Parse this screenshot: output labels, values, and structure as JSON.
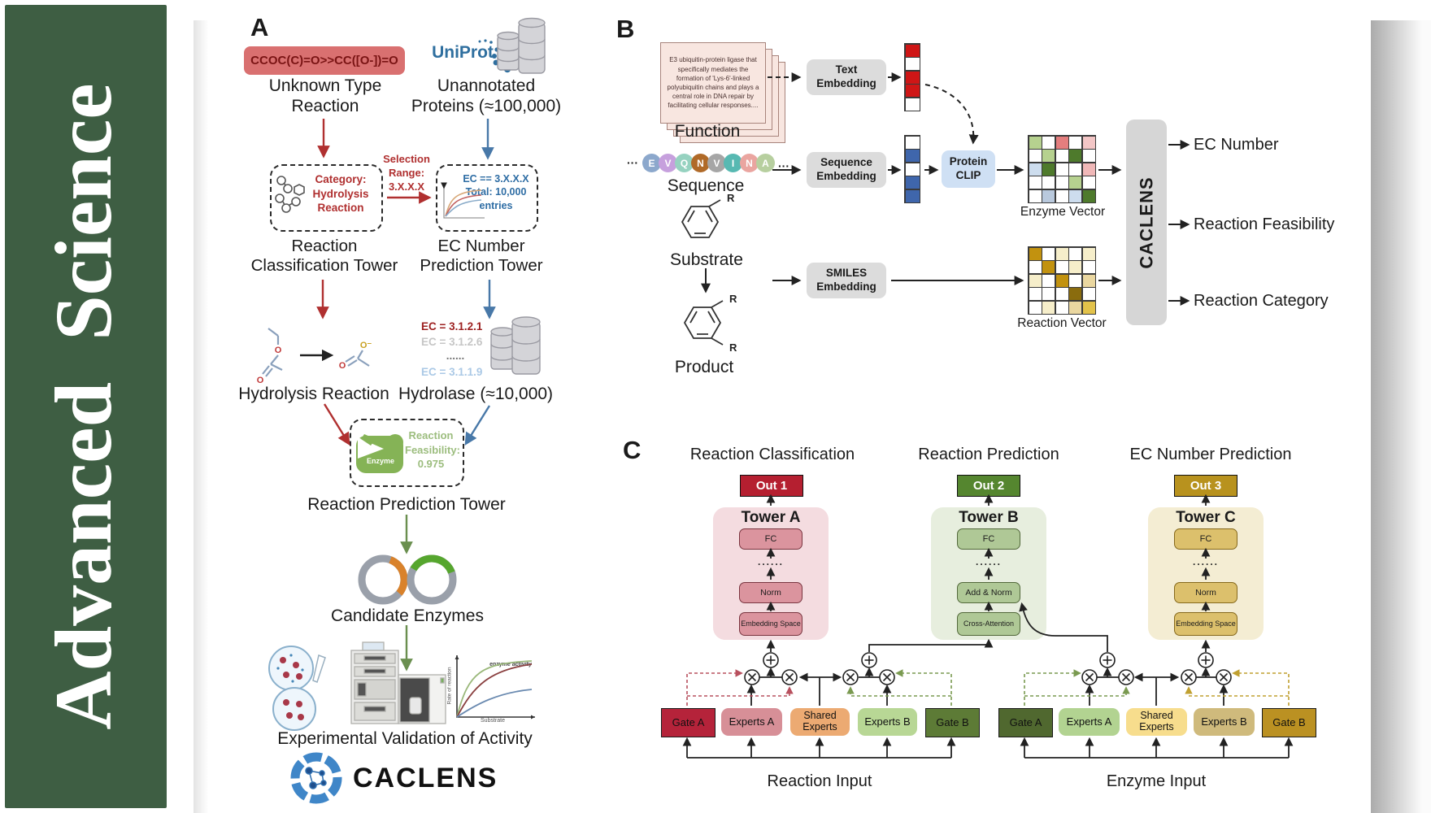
{
  "journal": "Advanced Science",
  "colors": {
    "sidebar_green": "#3e5e43",
    "uniprot_blue": "#2f6f9f",
    "red_arrow": "#b03030",
    "blue_arrow": "#4878a8",
    "green_arrow": "#6a8f4f",
    "out1": "#b51f30",
    "out2": "#55862f",
    "out3": "#b8921e",
    "gateA_left": "#b5233a",
    "expertsA_left": "#d78f97",
    "shared_left": "#ecaa72",
    "expertsB_left": "#b8d795",
    "gateB_left": "#5d7b36",
    "gateA_right": "#50682f",
    "expertsA_right": "#b2d391",
    "shared_right": "#f7dd8d",
    "expertsB_right": "#cfba7c",
    "gateB_right": "#bb9122"
  },
  "panelA": {
    "label": "A",
    "smiles": "CCOC(C)=O>>CC([O-])=O",
    "uniprot": "UniProt",
    "unknown": "Unknown Type Reaction",
    "unannotated": "Unannotated Proteins (≈100,000)",
    "selection": "Selection Range: 3.X.X.X",
    "category_box": "Category: Hydrolysis Reaction",
    "ec_box": "EC == 3.X.X.X Total: 10,000 entries",
    "tower_classification": "Reaction Classification Tower",
    "tower_ec": "EC Number Prediction Tower",
    "ec_list": [
      "EC = 3.1.2.1",
      "EC = 3.1.2.6",
      "......",
      "EC = 3.1.1.9"
    ],
    "hydrolysis": "Hydrolysis Reaction",
    "hydrolase": "Hydrolase (≈10,000)",
    "enzyme": "Enzyme",
    "feasibility": "Reaction Feasibility: 0.975",
    "tower_prediction": "Reaction Prediction Tower",
    "candidates": "Candidate Enzymes",
    "validation": "Experimental Validation of Activity",
    "brand": "CACLENS",
    "o": "O",
    "o_minus": "O⁻",
    "activity_plot": {
      "ylabel": "Rate of reaction",
      "xlabel": "Substrate",
      "annotation": "enzyme activity"
    }
  },
  "panelB": {
    "label": "B",
    "function_text": "E3 ubiquitin-protein ligase that specifically mediates the formation of 'Lys-6'-linked polyubiquitin chains and plays a central role in DNA repair by facilitating cellular responses....",
    "function": "Function",
    "sequence": "Sequence",
    "substrate": "Substrate",
    "product": "Product",
    "r": "R",
    "dots": "···",
    "aa": [
      {
        "l": "E",
        "c": "#8ca8cc"
      },
      {
        "l": "V",
        "c": "#c6a0dd"
      },
      {
        "l": "Q",
        "c": "#96d2c0"
      },
      {
        "l": "N",
        "c": "#b06a28"
      },
      {
        "l": "V",
        "c": "#a6a6a6"
      },
      {
        "l": "I",
        "c": "#57b9b2"
      },
      {
        "l": "N",
        "c": "#eaa5a0"
      },
      {
        "l": "A",
        "c": "#b7cf9f"
      }
    ],
    "text_embedding": "Text Embedding",
    "sequence_embedding": "Sequence Embedding",
    "smiles_embedding": "SMILES Embedding",
    "protein_clip": "Protein CLIP",
    "caclens": "CACLENS",
    "enzyme_vector": "Enzyme Vector",
    "reaction_vector": "Reaction Vector",
    "outputs": [
      "EC Number",
      "Reaction Feasibility",
      "Reaction Category"
    ],
    "text_vec": [
      [
        "#cf1616"
      ],
      [
        null
      ],
      [
        "#cf1616"
      ],
      [
        "#cf1616"
      ],
      [
        null
      ]
    ],
    "seq_vec": [
      [
        null
      ],
      [
        "#3f66ac"
      ],
      [
        null
      ],
      [
        "#3f66ac"
      ],
      [
        "#3f66ac"
      ]
    ],
    "enzyme_matrix": [
      [
        "#b6d18f",
        null,
        "#e47e7e",
        null,
        "#f3c6c6"
      ],
      [
        null,
        "#b6d18f",
        null,
        "#4e7a2c",
        null
      ],
      [
        "#cdddee",
        "#4e7a2c",
        null,
        null,
        "#f0b8b8"
      ],
      [
        null,
        null,
        null,
        "#b6d18f",
        null
      ],
      [
        null,
        "#b9c9dd",
        null,
        "#cdddee",
        "#4e7a2c"
      ]
    ],
    "reaction_matrix": [
      [
        "#c2920f",
        null,
        "#f6eeca",
        null,
        "#f6eeca"
      ],
      [
        null,
        "#c2920f",
        null,
        "#f6eeca",
        null
      ],
      [
        "#f6eeca",
        null,
        "#c2920f",
        null,
        "#ead7a0"
      ],
      [
        null,
        null,
        null,
        "#8a6c0e",
        null
      ],
      [
        null,
        "#f6eeca",
        null,
        "#ead7a0",
        "#e2c24a"
      ]
    ]
  },
  "panelC": {
    "label": "C",
    "columns": [
      {
        "title": "Reaction Classification",
        "out": "Out 1",
        "tower": "Tower A",
        "layers": [
          "FC",
          "......",
          "Norm",
          "Embedding Space"
        ]
      },
      {
        "title": "Reaction Prediction",
        "out": "Out 2",
        "tower": "Tower B",
        "layers": [
          "FC",
          "......",
          "Add & Norm",
          "Cross-Attention"
        ]
      },
      {
        "title": "EC Number Prediction",
        "out": "Out 3",
        "tower": "Tower C",
        "layers": [
          "FC",
          "......",
          "Norm",
          "Embedding Space"
        ]
      }
    ],
    "groups": [
      {
        "input": "Reaction Input",
        "boxes": [
          "Gate A",
          "Experts A",
          "Shared Experts",
          "Experts B",
          "Gate B"
        ]
      },
      {
        "input": "Enzyme Input",
        "boxes": [
          "Gate A",
          "Experts A",
          "Shared Experts",
          "Experts B",
          "Gate B"
        ]
      }
    ]
  }
}
